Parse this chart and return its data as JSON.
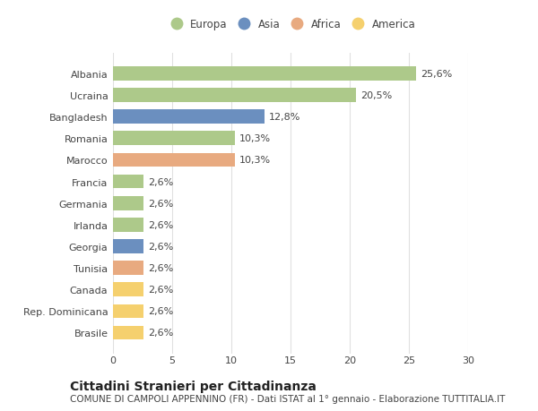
{
  "categories": [
    "Albania",
    "Ucraina",
    "Bangladesh",
    "Romania",
    "Marocco",
    "Francia",
    "Germania",
    "Irlanda",
    "Georgia",
    "Tunisia",
    "Canada",
    "Rep. Dominicana",
    "Brasile"
  ],
  "values": [
    25.6,
    20.5,
    12.8,
    10.3,
    10.3,
    2.6,
    2.6,
    2.6,
    2.6,
    2.6,
    2.6,
    2.6,
    2.6
  ],
  "continents": [
    "Europa",
    "Europa",
    "Asia",
    "Europa",
    "Africa",
    "Europa",
    "Europa",
    "Europa",
    "Asia",
    "Africa",
    "America",
    "America",
    "America"
  ],
  "labels": [
    "25,6%",
    "20,5%",
    "12,8%",
    "10,3%",
    "10,3%",
    "2,6%",
    "2,6%",
    "2,6%",
    "2,6%",
    "2,6%",
    "2,6%",
    "2,6%",
    "2,6%"
  ],
  "continent_colors": {
    "Europa": "#adc98a",
    "Asia": "#6b8fbf",
    "Africa": "#e8aa80",
    "America": "#f5d06e"
  },
  "legend_items": [
    "Europa",
    "Asia",
    "Africa",
    "America"
  ],
  "xlim": [
    0,
    30
  ],
  "xticks": [
    0,
    5,
    10,
    15,
    20,
    25,
    30
  ],
  "title": "Cittadini Stranieri per Cittadinanza",
  "subtitle": "COMUNE DI CAMPOLI APPENNINO (FR) - Dati ISTAT al 1° gennaio - Elaborazione TUTTITALIA.IT",
  "background_color": "#ffffff",
  "plot_bg_color": "#ffffff",
  "bar_height": 0.65,
  "grid_color": "#e0e0e0",
  "text_color": "#444444",
  "title_fontsize": 10,
  "subtitle_fontsize": 7.5,
  "tick_fontsize": 8,
  "label_fontsize": 8
}
